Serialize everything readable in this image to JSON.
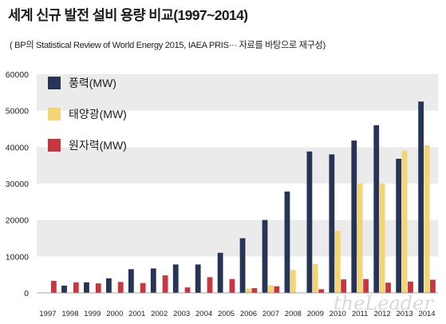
{
  "chart_data": {
    "type": "bar",
    "title": "세계 신규 발전 설비 용량 비교(1997~2014)",
    "subtitle": "( BP의 Statistical Review of World Energy 2015, IAEA PRIS··· 자료를 바탕으로 재구성)",
    "categories": [
      "1997",
      "1998",
      "1999",
      "2000",
      "2001",
      "2002",
      "2003",
      "2004",
      "2005",
      "2006",
      "2007",
      "2008",
      "2009",
      "2010",
      "2011",
      "2012",
      "2013",
      "2014"
    ],
    "y_ticks": [
      "0",
      "10000",
      "20000",
      "30000",
      "40000",
      "50000",
      "60000"
    ],
    "ylim": [
      0,
      60000
    ],
    "grid": "alternating horizontal bands",
    "legend_position": "top-left",
    "series": [
      {
        "name": "풍력(MW)",
        "color": "#263556",
        "values": [
          null,
          2000,
          2900,
          4000,
          6500,
          6700,
          7800,
          7800,
          11000,
          15000,
          20000,
          27800,
          38800,
          38000,
          41800,
          46000,
          36800,
          52500
        ]
      },
      {
        "name": "태양광(MW)",
        "color": "#f3d573",
        "values": [
          null,
          null,
          null,
          null,
          null,
          null,
          null,
          null,
          null,
          1200,
          2100,
          6300,
          7900,
          17000,
          30000,
          30000,
          39000,
          40500
        ]
      },
      {
        "name": "원자력(MW)",
        "color": "#c8363f",
        "values": [
          3300,
          2900,
          2600,
          3000,
          2700,
          4800,
          1500,
          4300,
          3800,
          1300,
          1800,
          0,
          1000,
          3700,
          3800,
          2800,
          3100,
          3600
        ]
      }
    ],
    "watermark": "theLeader"
  }
}
